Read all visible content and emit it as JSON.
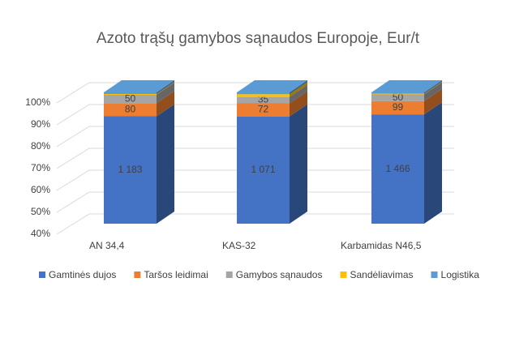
{
  "chart_data": {
    "type": "bar3d_percent_stacked",
    "title": "Azoto trąšų gamybos sąnaudos Europoje, Eur/t",
    "categories": [
      "AN 34,4",
      "KAS-32",
      "Karbamidas N46,5"
    ],
    "series": [
      {
        "name": "Gamtinės dujos",
        "color": "#4472c4",
        "values": [
          1183,
          1071,
          1466
        ],
        "value_labels": [
          "1 183",
          "1 071",
          "1 466"
        ]
      },
      {
        "name": "Taršos leidimai",
        "color": "#ed7d31",
        "values": [
          80,
          72,
          99
        ]
      },
      {
        "name": "Gamybos sąnaudos",
        "color": "#a5a5a5",
        "values": [
          50,
          35,
          50
        ]
      },
      {
        "name": "Sandėliavimas",
        "color": "#ffc000",
        "values": [
          5,
          15,
          5
        ]
      },
      {
        "name": "Logistika",
        "color": "#5b9bd5",
        "values": [
          10,
          10,
          10
        ]
      }
    ],
    "ylim": [
      40,
      100
    ],
    "yticks": [
      {
        "value": 40,
        "label": "40%"
      },
      {
        "value": 50,
        "label": "50%"
      },
      {
        "value": 60,
        "label": "60%"
      },
      {
        "value": 70,
        "label": "70%"
      },
      {
        "value": 80,
        "label": "80%"
      },
      {
        "value": 90,
        "label": "90%"
      },
      {
        "value": 100,
        "label": "100%"
      }
    ],
    "grid": true,
    "legend": "bottom"
  }
}
